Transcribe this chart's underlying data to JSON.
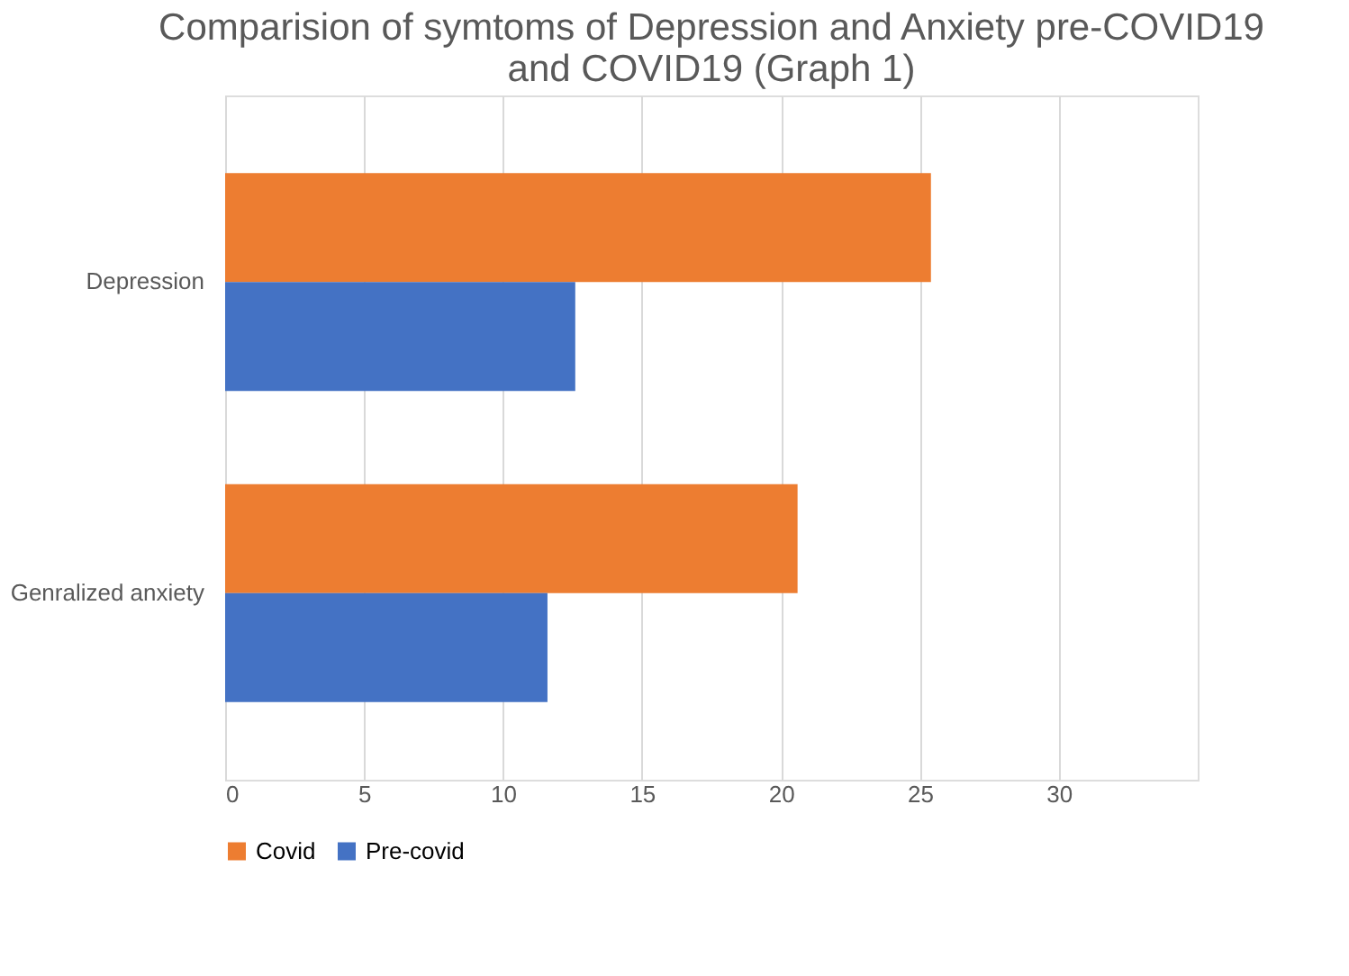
{
  "chart_data": {
    "type": "bar",
    "orientation": "horizontal",
    "title": "Comparision of symtoms of Depression and Anxiety pre-COVID19 and COVID19 (Graph 1)",
    "categories": [
      "Depression",
      "Genralized anxiety"
    ],
    "series": [
      {
        "name": "Covid",
        "color": "#ed7d31",
        "values": [
          25.4,
          20.6
        ]
      },
      {
        "name": "Pre-covid",
        "color": "#4472c4",
        "values": [
          12.6,
          11.6
        ]
      }
    ],
    "xlim": [
      0,
      35
    ],
    "xticks": [
      0,
      5,
      10,
      15,
      20,
      25,
      30
    ],
    "grid": "x",
    "legend": "bottom"
  }
}
